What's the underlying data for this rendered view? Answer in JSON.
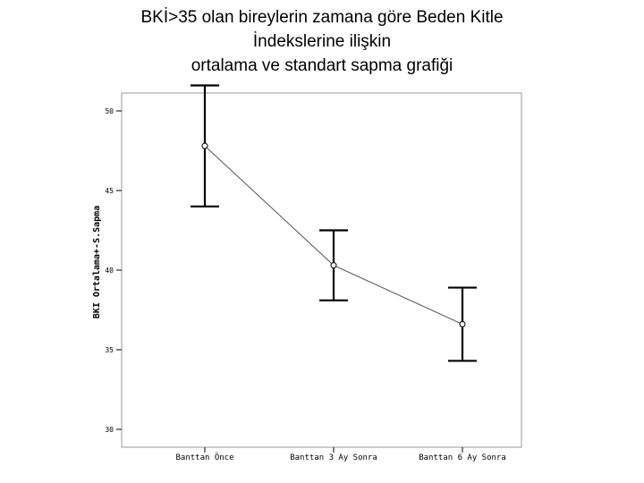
{
  "title_lines": [
    "BKİ>35 olan bireylerin zamana göre Beden Kitle",
    "İndekslerine ilişkin",
    "ortalama ve standart sapma grafiği"
  ],
  "chart_data": {
    "type": "line",
    "title": "BKİ>35 olan bireylerin zamana göre Beden Kitle İndekslerine ilişkin ortalama ve standart sapma grafiği",
    "xlabel": "",
    "ylabel": "BKI Ortalama+-S.Sapma",
    "categories": [
      "Banttan Önce",
      "Banttan 3 Ay Sonra",
      "Banttan 6 Ay Sonra"
    ],
    "series": [
      {
        "values": [
          47.8,
          40.3,
          36.6
        ],
        "lower": [
          44.0,
          38.1,
          34.3
        ],
        "upper": [
          51.6,
          42.5,
          38.9
        ]
      }
    ],
    "yticks": [
      30,
      35,
      40,
      45,
      50
    ],
    "ytick_labels": [
      "30",
      "35",
      "40",
      "45",
      "50"
    ],
    "ylim": [
      30,
      50
    ],
    "grid": false,
    "colors": {
      "line": "#555555",
      "errorbar": "#000000",
      "frame": "#999999"
    }
  }
}
